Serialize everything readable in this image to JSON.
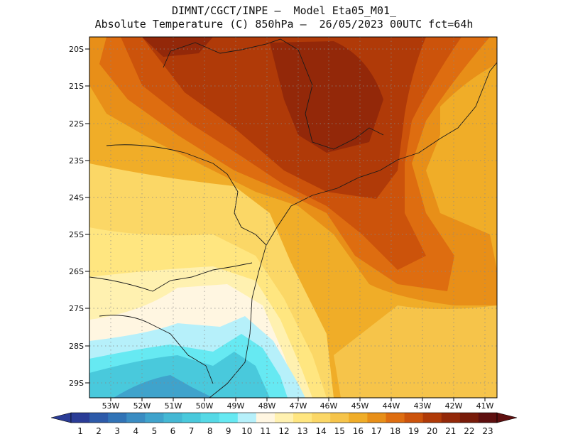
{
  "title": {
    "line1": "DIMNT/CGCT/INPE –  Model Eta05_M01_",
    "line2": "Absolute Temperature (C) 850hPa –  26/05/2023 00UTC fct=64h"
  },
  "map": {
    "lat_range": [
      -29.5,
      -19.9
    ],
    "lon_range": [
      -53.7,
      -40.6
    ],
    "lat_ticks": [
      "20S",
      "21S",
      "22S",
      "23S",
      "24S",
      "25S",
      "26S",
      "27S",
      "28S",
      "29S"
    ],
    "lon_ticks": [
      "53W",
      "52W",
      "51W",
      "50W",
      "49W",
      "48W",
      "47W",
      "46W",
      "45W",
      "44W",
      "43W",
      "42W",
      "41W"
    ],
    "variable": "temperature_850hPa_C"
  },
  "colorbar": {
    "labels": [
      "1",
      "2",
      "3",
      "4",
      "5",
      "6",
      "7",
      "8",
      "9",
      "10",
      "11",
      "12",
      "13",
      "14",
      "15",
      "16",
      "17",
      "18",
      "19",
      "20",
      "21",
      "22",
      "23"
    ],
    "colors": [
      "#2a3c96",
      "#2d5aa9",
      "#3173b6",
      "#3a8cc2",
      "#3fa3cc",
      "#44b8d4",
      "#49c9dc",
      "#55d9e6",
      "#66e9f2",
      "#b6f0fa",
      "#fff6e1",
      "#fff1b0",
      "#ffe680",
      "#fbd766",
      "#f6c44a",
      "#f0ad28",
      "#e88f18",
      "#de6d10",
      "#cc530b",
      "#b03a08",
      "#932809",
      "#781b09",
      "#5e0f0f"
    ]
  }
}
